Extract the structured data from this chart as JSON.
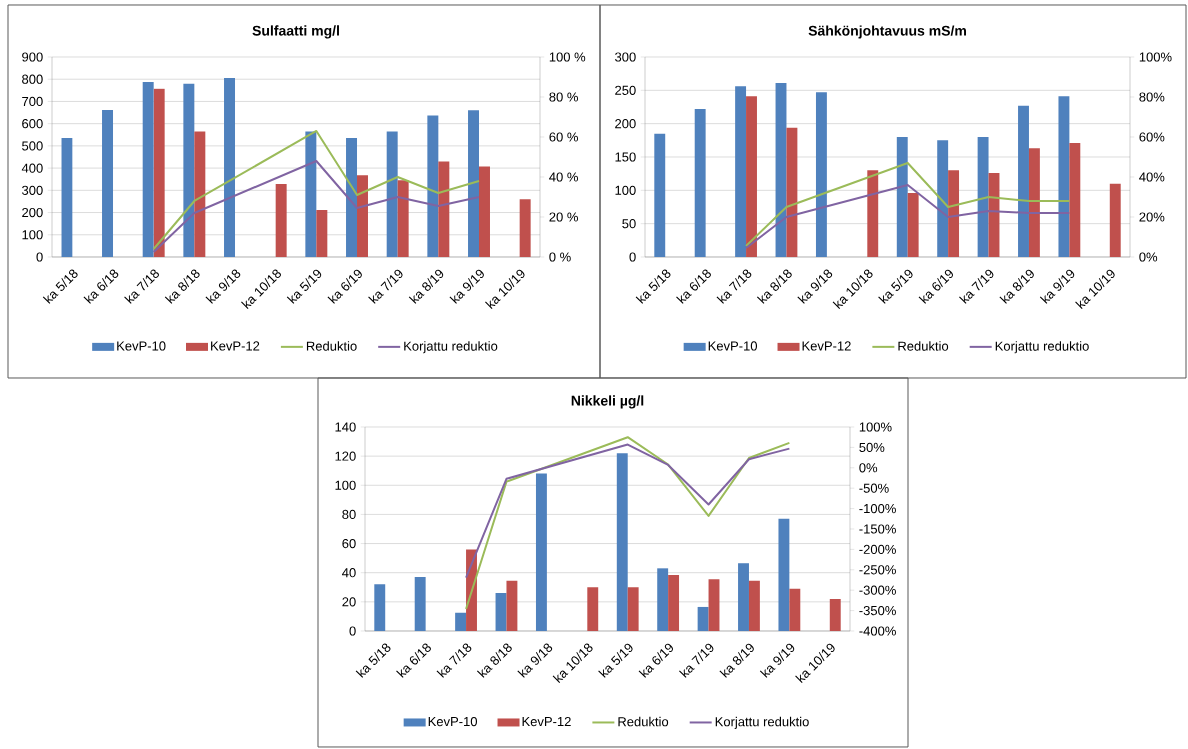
{
  "chart_data": [
    {
      "type": "bar",
      "title": "Sulfaatti mg/l",
      "categories": [
        "ka 5/18",
        "ka 6/18",
        "ka 7/18",
        "ka 8/18",
        "ka 9/18",
        "ka 10/18",
        "ka 5/19",
        "ka 6/19",
        "ka 7/19",
        "ka 8/19",
        "ka 9/19",
        "ka 10/19"
      ],
      "series": [
        {
          "name": "KevP-10",
          "color": "#4f81bd",
          "values": [
            535,
            662,
            788,
            780,
            806,
            null,
            565,
            535,
            565,
            637,
            660,
            null
          ]
        },
        {
          "name": "KevP-12",
          "color": "#c0504d",
          "values": [
            null,
            null,
            757,
            565,
            null,
            328,
            212,
            368,
            345,
            430,
            407,
            260
          ]
        },
        {
          "name": "Reduktio",
          "type": "line",
          "axis": "y2",
          "color": "#9bbb59",
          "values": [
            null,
            null,
            4,
            28,
            null,
            null,
            63,
            31,
            40,
            32,
            38,
            null
          ]
        },
        {
          "name": "Korjattu reduktio",
          "type": "line",
          "axis": "y2",
          "color": "#8064a2",
          "values": [
            null,
            null,
            2.5,
            22,
            null,
            null,
            48,
            24.5,
            30,
            25.5,
            30,
            null
          ]
        }
      ],
      "ylim": [
        0,
        900
      ],
      "yticks": [
        0,
        100,
        200,
        300,
        400,
        500,
        600,
        700,
        800,
        900
      ],
      "y2lim": [
        0,
        100
      ],
      "y2ticks": [
        {
          "value": 0,
          "label": "0 %"
        },
        {
          "value": 20,
          "label": "20 %"
        },
        {
          "value": 40,
          "label": "40 %"
        },
        {
          "value": 60,
          "label": "60 %"
        },
        {
          "value": 80,
          "label": "80 %"
        },
        {
          "value": 100,
          "label": "100 %"
        }
      ],
      "grid": "y",
      "legend": "bottom"
    },
    {
      "type": "bar",
      "title": "Sähkönjohtavuus mS/m",
      "categories": [
        "ka 5/18",
        "ka 6/18",
        "ka 7/18",
        "ka 8/18",
        "ka 9/18",
        "ka 10/18",
        "ka 5/19",
        "ka 6/19",
        "ka 7/19",
        "ka 8/19",
        "ka 9/19",
        "ka 10/19"
      ],
      "series": [
        {
          "name": "KevP-10",
          "color": "#4f81bd",
          "values": [
            185,
            222,
            256,
            261,
            247,
            null,
            180,
            175,
            180,
            227,
            241,
            null
          ]
        },
        {
          "name": "KevP-12",
          "color": "#c0504d",
          "values": [
            null,
            null,
            241,
            194,
            null,
            130,
            96,
            130,
            126,
            163,
            171,
            110
          ]
        },
        {
          "name": "Reduktio",
          "type": "line",
          "axis": "y2",
          "color": "#9bbb59",
          "values": [
            null,
            null,
            5.5,
            25,
            null,
            null,
            47,
            25,
            30,
            28,
            28,
            null
          ]
        },
        {
          "name": "Korjattu reduktio",
          "type": "line",
          "axis": "y2",
          "color": "#8064a2",
          "values": [
            null,
            null,
            4.5,
            20,
            null,
            null,
            36,
            20,
            23,
            22,
            22,
            null
          ]
        }
      ],
      "ylim": [
        0,
        300
      ],
      "yticks": [
        0,
        50,
        100,
        150,
        200,
        250,
        300
      ],
      "y2lim": [
        0,
        100
      ],
      "y2ticks": [
        {
          "value": 0,
          "label": "0%"
        },
        {
          "value": 20,
          "label": "20%"
        },
        {
          "value": 40,
          "label": "40%"
        },
        {
          "value": 60,
          "label": "60%"
        },
        {
          "value": 80,
          "label": "80%"
        },
        {
          "value": 100,
          "label": "100%"
        }
      ],
      "grid": "y",
      "legend": "bottom"
    },
    {
      "type": "bar",
      "title": "Nikkeli µg/l",
      "categories": [
        "ka 5/18",
        "ka 6/18",
        "ka 7/18",
        "ka 8/18",
        "ka 9/18",
        "ka 10/18",
        "ka 5/19",
        "ka 6/19",
        "ka 7/19",
        "ka 8/19",
        "ka 9/19",
        "ka 10/19"
      ],
      "series": [
        {
          "name": "KevP-10",
          "color": "#4f81bd",
          "values": [
            32,
            37,
            12.5,
            26,
            108,
            null,
            122,
            43,
            16.5,
            46.5,
            77,
            null
          ]
        },
        {
          "name": "KevP-12",
          "color": "#c0504d",
          "values": [
            null,
            null,
            56,
            34.5,
            null,
            30,
            30,
            38.5,
            35.5,
            34.5,
            29,
            22
          ]
        },
        {
          "name": "Reduktio",
          "type": "line",
          "axis": "y2",
          "color": "#9bbb59",
          "values": [
            null,
            null,
            -346,
            -34,
            null,
            null,
            75,
            8,
            -118,
            24,
            61,
            null
          ]
        },
        {
          "name": "Korjattu reduktio",
          "type": "line",
          "axis": "y2",
          "color": "#8064a2",
          "values": [
            null,
            null,
            -269,
            -27,
            null,
            null,
            57,
            7,
            -90,
            21,
            47,
            null
          ]
        }
      ],
      "ylim": [
        0,
        140
      ],
      "yticks": [
        0,
        20,
        40,
        60,
        80,
        100,
        120,
        140
      ],
      "y2lim": [
        -400,
        100
      ],
      "y2ticks": [
        {
          "value": -400,
          "label": "-400%"
        },
        {
          "value": -350,
          "label": "-350%"
        },
        {
          "value": -300,
          "label": "-300%"
        },
        {
          "value": -250,
          "label": "-250%"
        },
        {
          "value": -200,
          "label": "-200%"
        },
        {
          "value": -150,
          "label": "-150%"
        },
        {
          "value": -100,
          "label": "-100%"
        },
        {
          "value": -50,
          "label": "-50%"
        },
        {
          "value": 0,
          "label": "0%"
        },
        {
          "value": 50,
          "label": "50%"
        },
        {
          "value": 100,
          "label": "100%"
        }
      ],
      "grid": "y",
      "legend": "bottom"
    }
  ]
}
